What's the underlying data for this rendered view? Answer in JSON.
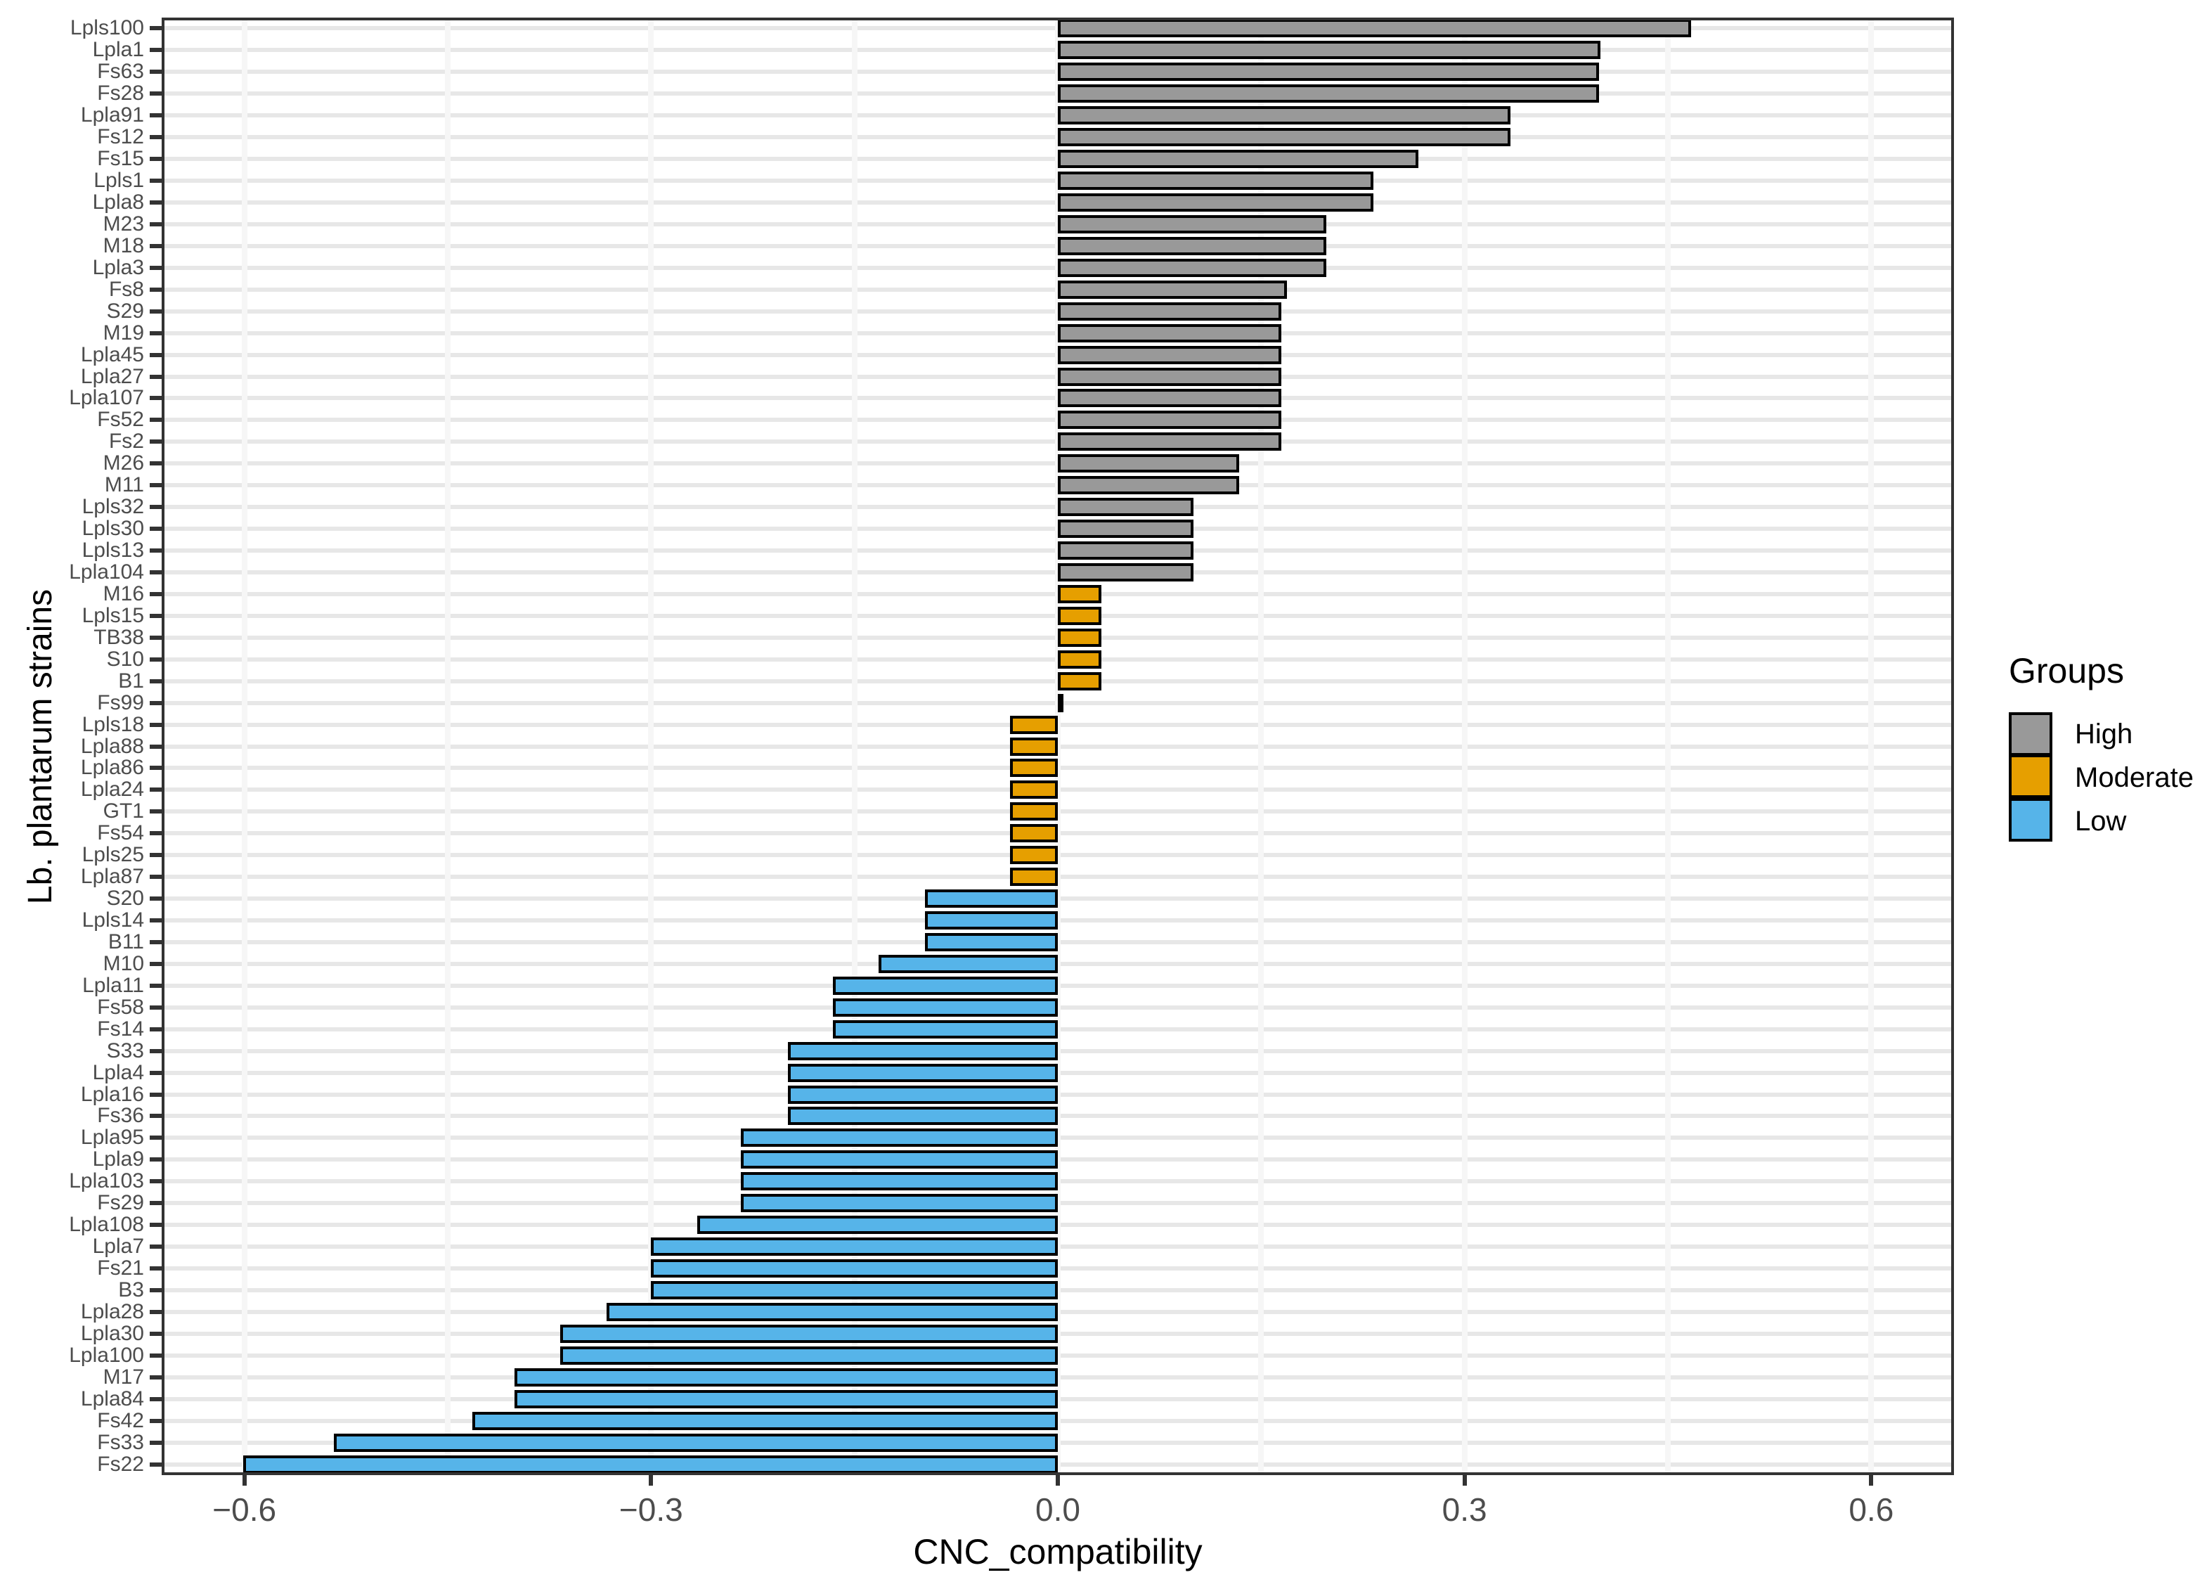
{
  "chart_data": {
    "type": "bar",
    "orientation": "horizontal",
    "xlabel": "CNC_compatibility",
    "ylabel": "Lb. plantarum strains",
    "xlim": [
      -0.661,
      0.661
    ],
    "x_ticks": {
      "major_values": [
        -0.6,
        -0.3,
        0.0,
        0.3,
        0.6
      ],
      "major_labels": [
        "−0.6",
        "−0.3",
        "0.0",
        "0.3",
        "0.6"
      ],
      "minor_values": [
        -0.45,
        -0.15,
        0.15,
        0.45
      ]
    },
    "grid": {
      "horizontal": "one light-gray line per strain row",
      "vertical": "white lines at 0.15 steps"
    },
    "legend": {
      "title": "Groups",
      "position": "right",
      "entries": [
        {
          "label": "High",
          "color": "#999999"
        },
        {
          "label": "Moderate",
          "color": "#E69F00"
        },
        {
          "label": "Low",
          "color": "#56B4E9"
        }
      ]
    },
    "bars": [
      {
        "strain": "Lpls100",
        "value": 0.467,
        "group": "High"
      },
      {
        "strain": "Lpla1",
        "value": 0.4,
        "group": "High"
      },
      {
        "strain": "Fs63",
        "value": 0.399,
        "group": "High"
      },
      {
        "strain": "Fs28",
        "value": 0.399,
        "group": "High"
      },
      {
        "strain": "Lpla91",
        "value": 0.334,
        "group": "High"
      },
      {
        "strain": "Fs12",
        "value": 0.334,
        "group": "High"
      },
      {
        "strain": "Fs15",
        "value": 0.266,
        "group": "High"
      },
      {
        "strain": "Lpls1",
        "value": 0.233,
        "group": "High"
      },
      {
        "strain": "Lpla8",
        "value": 0.233,
        "group": "High"
      },
      {
        "strain": "M23",
        "value": 0.198,
        "group": "High"
      },
      {
        "strain": "M18",
        "value": 0.198,
        "group": "High"
      },
      {
        "strain": "Lpla3",
        "value": 0.198,
        "group": "High"
      },
      {
        "strain": "Fs8",
        "value": 0.169,
        "group": "High"
      },
      {
        "strain": "S29",
        "value": 0.165,
        "group": "High"
      },
      {
        "strain": "M19",
        "value": 0.165,
        "group": "High"
      },
      {
        "strain": "Lpla45",
        "value": 0.165,
        "group": "High"
      },
      {
        "strain": "Lpla27",
        "value": 0.165,
        "group": "High"
      },
      {
        "strain": "Lpla107",
        "value": 0.165,
        "group": "High"
      },
      {
        "strain": "Fs52",
        "value": 0.165,
        "group": "High"
      },
      {
        "strain": "Fs2",
        "value": 0.165,
        "group": "High"
      },
      {
        "strain": "M26",
        "value": 0.134,
        "group": "High"
      },
      {
        "strain": "M11",
        "value": 0.134,
        "group": "High"
      },
      {
        "strain": "Lpls32",
        "value": 0.1,
        "group": "High"
      },
      {
        "strain": "Lpls30",
        "value": 0.1,
        "group": "High"
      },
      {
        "strain": "Lpls13",
        "value": 0.1,
        "group": "High"
      },
      {
        "strain": "Lpla104",
        "value": 0.1,
        "group": "High"
      },
      {
        "strain": "M16",
        "value": 0.032,
        "group": "Moderate"
      },
      {
        "strain": "Lpls15",
        "value": 0.032,
        "group": "Moderate"
      },
      {
        "strain": "TB38",
        "value": 0.032,
        "group": "Moderate"
      },
      {
        "strain": "S10",
        "value": 0.032,
        "group": "Moderate"
      },
      {
        "strain": "B1",
        "value": 0.032,
        "group": "Moderate"
      },
      {
        "strain": "Fs99",
        "value": 0.002,
        "group": "Moderate"
      },
      {
        "strain": "Lpls18",
        "value": -0.035,
        "group": "Moderate"
      },
      {
        "strain": "Lpla88",
        "value": -0.035,
        "group": "Moderate"
      },
      {
        "strain": "Lpla86",
        "value": -0.035,
        "group": "Moderate"
      },
      {
        "strain": "Lpla24",
        "value": -0.035,
        "group": "Moderate"
      },
      {
        "strain": "GT1",
        "value": -0.035,
        "group": "Moderate"
      },
      {
        "strain": "Fs54",
        "value": -0.035,
        "group": "Moderate"
      },
      {
        "strain": "Lpls25",
        "value": -0.035,
        "group": "Moderate"
      },
      {
        "strain": "Lpla87",
        "value": -0.035,
        "group": "Moderate"
      },
      {
        "strain": "S20",
        "value": -0.098,
        "group": "Low"
      },
      {
        "strain": "Lpls14",
        "value": -0.098,
        "group": "Low"
      },
      {
        "strain": "B11",
        "value": -0.098,
        "group": "Low"
      },
      {
        "strain": "M10",
        "value": -0.132,
        "group": "Low"
      },
      {
        "strain": "Lpla11",
        "value": -0.166,
        "group": "Low"
      },
      {
        "strain": "Fs58",
        "value": -0.166,
        "group": "Low"
      },
      {
        "strain": "Fs14",
        "value": -0.166,
        "group": "Low"
      },
      {
        "strain": "S33",
        "value": -0.199,
        "group": "Low"
      },
      {
        "strain": "Lpla4",
        "value": -0.199,
        "group": "Low"
      },
      {
        "strain": "Lpla16",
        "value": -0.199,
        "group": "Low"
      },
      {
        "strain": "Fs36",
        "value": -0.199,
        "group": "Low"
      },
      {
        "strain": "Lpla95",
        "value": -0.234,
        "group": "Low"
      },
      {
        "strain": "Lpla9",
        "value": -0.234,
        "group": "Low"
      },
      {
        "strain": "Lpla103",
        "value": -0.234,
        "group": "Low"
      },
      {
        "strain": "Fs29",
        "value": -0.234,
        "group": "Low"
      },
      {
        "strain": "Lpla108",
        "value": -0.266,
        "group": "Low"
      },
      {
        "strain": "Lpla7",
        "value": -0.3,
        "group": "Low"
      },
      {
        "strain": "Fs21",
        "value": -0.3,
        "group": "Low"
      },
      {
        "strain": "B3",
        "value": -0.3,
        "group": "Low"
      },
      {
        "strain": "Lpla28",
        "value": -0.333,
        "group": "Low"
      },
      {
        "strain": "Lpla30",
        "value": -0.367,
        "group": "Low"
      },
      {
        "strain": "Lpla100",
        "value": -0.367,
        "group": "Low"
      },
      {
        "strain": "M17",
        "value": -0.401,
        "group": "Low"
      },
      {
        "strain": "Lpla84",
        "value": -0.401,
        "group": "Low"
      },
      {
        "strain": "Fs42",
        "value": -0.432,
        "group": "Low"
      },
      {
        "strain": "Fs33",
        "value": -0.534,
        "group": "Low"
      },
      {
        "strain": "Fs22",
        "value": -0.601,
        "group": "Low"
      }
    ]
  }
}
